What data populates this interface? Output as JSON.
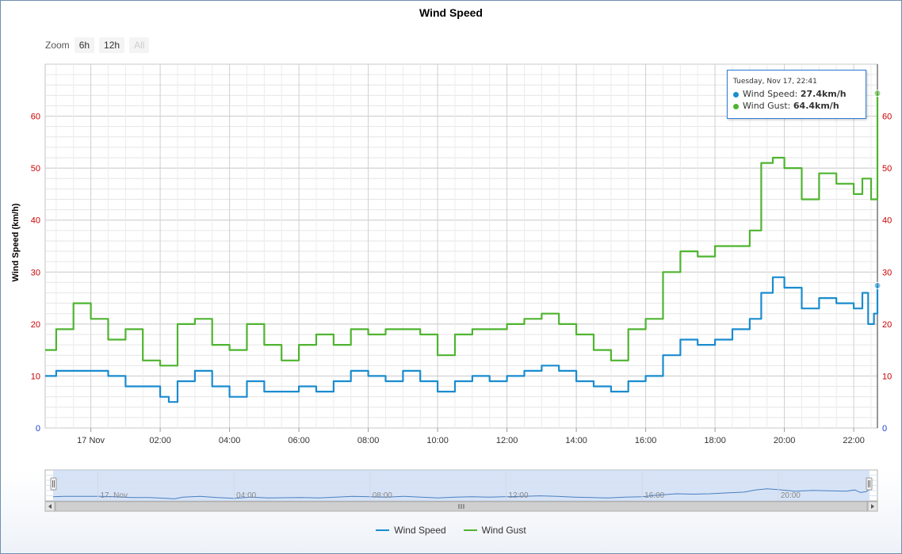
{
  "chart_data": {
    "type": "line",
    "title": "Wind Speed",
    "ylabel": "Wind Speed (km/h)",
    "ylim": [
      0,
      70
    ],
    "x_range": [
      "2015-11-16 22:41",
      "2015-11-17 22:41"
    ],
    "x_tick_labels": [
      "17 Nov",
      "02:00",
      "04:00",
      "06:00",
      "08:00",
      "10:00",
      "12:00",
      "14:00",
      "16:00",
      "18:00",
      "20:00",
      "22:00"
    ],
    "y_tick_labels": [
      "0",
      "10",
      "20",
      "30",
      "40",
      "50",
      "60"
    ],
    "y_tick_labels_right": [
      "0",
      "10",
      "20",
      "30",
      "40",
      "50",
      "60"
    ],
    "grid": true,
    "legend": "bottom-center",
    "series": [
      {
        "name": "Wind Speed",
        "color": "#1a8ccf",
        "points": [
          [
            "2015-11-16 22:41",
            10
          ],
          [
            "2015-11-16 23:00",
            11
          ],
          [
            "2015-11-17 00:00",
            11
          ],
          [
            "2015-11-17 00:30",
            10
          ],
          [
            "2015-11-17 01:00",
            8
          ],
          [
            "2015-11-17 01:30",
            8
          ],
          [
            "2015-11-17 02:00",
            6
          ],
          [
            "2015-11-17 02:15",
            5
          ],
          [
            "2015-11-17 02:30",
            9
          ],
          [
            "2015-11-17 03:00",
            11
          ],
          [
            "2015-11-17 03:30",
            8
          ],
          [
            "2015-11-17 04:00",
            6
          ],
          [
            "2015-11-17 04:30",
            9
          ],
          [
            "2015-11-17 05:00",
            7
          ],
          [
            "2015-11-17 06:00",
            8
          ],
          [
            "2015-11-17 06:30",
            7
          ],
          [
            "2015-11-17 07:00",
            9
          ],
          [
            "2015-11-17 07:30",
            11
          ],
          [
            "2015-11-17 08:00",
            10
          ],
          [
            "2015-11-17 08:30",
            9
          ],
          [
            "2015-11-17 09:00",
            11
          ],
          [
            "2015-11-17 09:30",
            9
          ],
          [
            "2015-11-17 10:00",
            7
          ],
          [
            "2015-11-17 10:30",
            9
          ],
          [
            "2015-11-17 11:00",
            10
          ],
          [
            "2015-11-17 11:30",
            9
          ],
          [
            "2015-11-17 12:00",
            10
          ],
          [
            "2015-11-17 12:30",
            11
          ],
          [
            "2015-11-17 13:00",
            12
          ],
          [
            "2015-11-17 13:30",
            11
          ],
          [
            "2015-11-17 14:00",
            9
          ],
          [
            "2015-11-17 14:30",
            8
          ],
          [
            "2015-11-17 15:00",
            7
          ],
          [
            "2015-11-17 15:30",
            9
          ],
          [
            "2015-11-17 16:00",
            10
          ],
          [
            "2015-11-17 16:30",
            14
          ],
          [
            "2015-11-17 17:00",
            17
          ],
          [
            "2015-11-17 17:30",
            16
          ],
          [
            "2015-11-17 18:00",
            17
          ],
          [
            "2015-11-17 18:30",
            19
          ],
          [
            "2015-11-17 19:00",
            21
          ],
          [
            "2015-11-17 19:20",
            26
          ],
          [
            "2015-11-17 19:40",
            29
          ],
          [
            "2015-11-17 20:00",
            27
          ],
          [
            "2015-11-17 20:30",
            23
          ],
          [
            "2015-11-17 21:00",
            25
          ],
          [
            "2015-11-17 21:30",
            24
          ],
          [
            "2015-11-17 22:00",
            23
          ],
          [
            "2015-11-17 22:15",
            26
          ],
          [
            "2015-11-17 22:25",
            20
          ],
          [
            "2015-11-17 22:35",
            22
          ],
          [
            "2015-11-17 22:41",
            27.4
          ]
        ]
      },
      {
        "name": "Wind Gust",
        "color": "#4fb430",
        "points": [
          [
            "2015-11-16 22:41",
            15
          ],
          [
            "2015-11-16 23:00",
            19
          ],
          [
            "2015-11-16 23:30",
            24
          ],
          [
            "2015-11-17 00:00",
            21
          ],
          [
            "2015-11-17 00:30",
            17
          ],
          [
            "2015-11-17 01:00",
            19
          ],
          [
            "2015-11-17 01:30",
            13
          ],
          [
            "2015-11-17 02:00",
            12
          ],
          [
            "2015-11-17 02:30",
            20
          ],
          [
            "2015-11-17 03:00",
            21
          ],
          [
            "2015-11-17 03:30",
            16
          ],
          [
            "2015-11-17 04:00",
            15
          ],
          [
            "2015-11-17 04:30",
            20
          ],
          [
            "2015-11-17 05:00",
            16
          ],
          [
            "2015-11-17 05:30",
            13
          ],
          [
            "2015-11-17 06:00",
            16
          ],
          [
            "2015-11-17 06:30",
            18
          ],
          [
            "2015-11-17 07:00",
            16
          ],
          [
            "2015-11-17 07:30",
            19
          ],
          [
            "2015-11-17 08:00",
            18
          ],
          [
            "2015-11-17 08:30",
            19
          ],
          [
            "2015-11-17 09:00",
            19
          ],
          [
            "2015-11-17 09:30",
            18
          ],
          [
            "2015-11-17 10:00",
            14
          ],
          [
            "2015-11-17 10:30",
            18
          ],
          [
            "2015-11-17 11:00",
            19
          ],
          [
            "2015-11-17 11:30",
            19
          ],
          [
            "2015-11-17 12:00",
            20
          ],
          [
            "2015-11-17 12:30",
            21
          ],
          [
            "2015-11-17 13:00",
            22
          ],
          [
            "2015-11-17 13:30",
            20
          ],
          [
            "2015-11-17 14:00",
            18
          ],
          [
            "2015-11-17 14:30",
            15
          ],
          [
            "2015-11-17 15:00",
            13
          ],
          [
            "2015-11-17 15:30",
            19
          ],
          [
            "2015-11-17 16:00",
            21
          ],
          [
            "2015-11-17 16:30",
            30
          ],
          [
            "2015-11-17 17:00",
            34
          ],
          [
            "2015-11-17 17:30",
            33
          ],
          [
            "2015-11-17 18:00",
            35
          ],
          [
            "2015-11-17 18:30",
            35
          ],
          [
            "2015-11-17 19:00",
            38
          ],
          [
            "2015-11-17 19:20",
            51
          ],
          [
            "2015-11-17 19:40",
            52
          ],
          [
            "2015-11-17 20:00",
            50
          ],
          [
            "2015-11-17 20:30",
            44
          ],
          [
            "2015-11-17 21:00",
            49
          ],
          [
            "2015-11-17 21:30",
            47
          ],
          [
            "2015-11-17 22:00",
            45
          ],
          [
            "2015-11-17 22:15",
            48
          ],
          [
            "2015-11-17 22:30",
            44
          ],
          [
            "2015-11-17 22:41",
            64.4
          ]
        ]
      }
    ],
    "navigator": {
      "x_tick_labels": [
        "17. Nov",
        "04:00",
        "08:00",
        "12:00",
        "16:00",
        "20:00"
      ]
    },
    "tooltip": {
      "date": "Tuesday, Nov 17, 22:41",
      "speed_label": "Wind Speed:",
      "speed_value": "27.4km/h",
      "gust_label": "Wind Gust:",
      "gust_value": "64.4km/h"
    }
  },
  "zoom": {
    "label": "Zoom",
    "buttons": [
      "6h",
      "12h",
      "All"
    ]
  },
  "legend": {
    "items": [
      {
        "label": "Wind Speed",
        "color": "#1a8ccf"
      },
      {
        "label": "Wind Gust",
        "color": "#4fb430"
      }
    ]
  },
  "colors": {
    "axis_tick_red": "#cc0000",
    "axis_tick_blue": "#1a3fcf",
    "grid": "#d8d8d8",
    "navigator_fill": "#c8daf4"
  },
  "icons": {
    "scroll_left": "arrow-left-icon",
    "scroll_right": "arrow-right-icon",
    "scroll_grip": "grip-icon",
    "handle": "handle-icon"
  }
}
